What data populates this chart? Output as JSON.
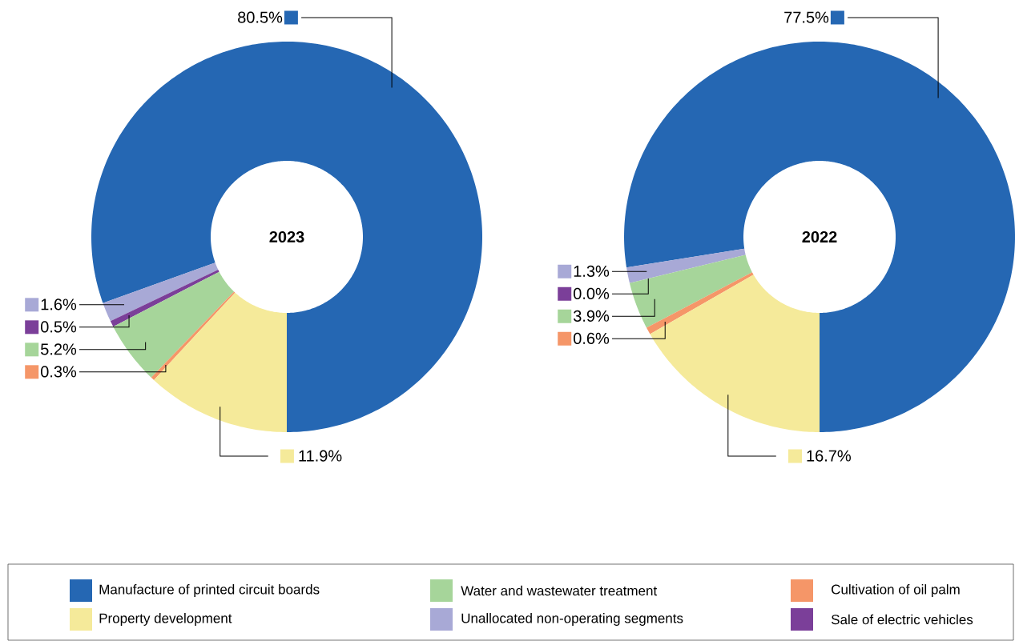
{
  "chart_data": [
    {
      "type": "donut",
      "title": "2023",
      "categories": [
        "Manufacture of printed circuit boards",
        "Water and wastewater treatment",
        "Cultivation of oil palm",
        "Property development",
        "Unallocated non-operating segments",
        "Sale of electric vehicles"
      ],
      "values": [
        80.5,
        5.2,
        0.3,
        11.9,
        1.6,
        0.5
      ],
      "value_labels": [
        "80.5%",
        "5.2%",
        "0.3%",
        "11.9%",
        "1.6%",
        "0.5%"
      ],
      "colors": [
        "#2567b3",
        "#a6d59a",
        "#f59668",
        "#f5ea9a",
        "#a8a9d6",
        "#7b3f99"
      ],
      "legend": "bottom"
    },
    {
      "type": "donut",
      "title": "2022",
      "categories": [
        null,
        null,
        null,
        null,
        null,
        null
      ],
      "values": [
        77.5,
        3.9,
        0.6,
        16.7,
        1.3,
        0.0
      ],
      "value_labels": [
        "77.5%",
        "3.9%",
        "0.6%",
        "16.7%",
        "1.3%",
        "0.0%"
      ],
      "colors": [
        "#2567b3",
        "#a6d59a",
        "#f59668",
        "#f5ea9a",
        "#a8a9d6",
        "#7b3f99"
      ]
    }
  ]
}
